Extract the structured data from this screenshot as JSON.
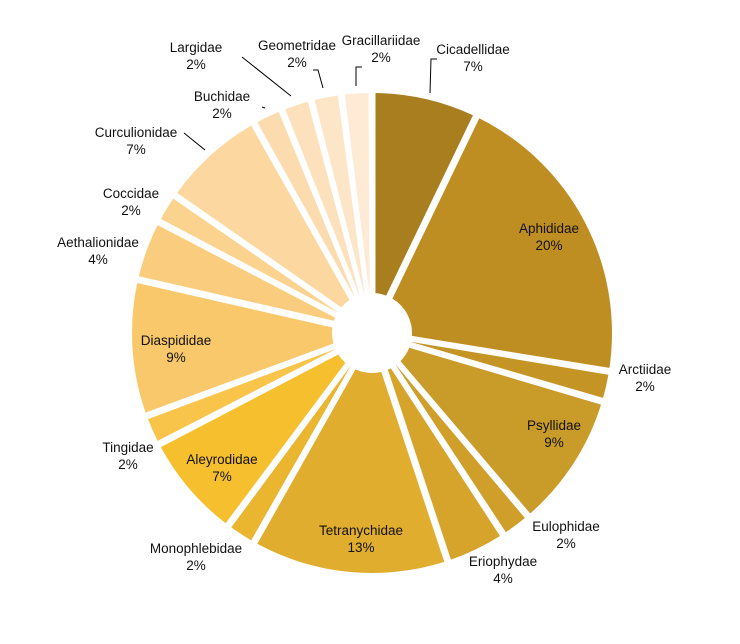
{
  "chart_data": {
    "type": "pie",
    "title": "",
    "exploded": true,
    "legend": "none",
    "slices": [
      {
        "label": "Cicadellidae",
        "pct_label": "7%",
        "value": 7,
        "color": "#a87e1e",
        "label_pos": "outside"
      },
      {
        "label": "Aphididae",
        "pct_label": "20%",
        "value": 20,
        "color": "#bf8e22",
        "label_pos": "inside"
      },
      {
        "label": "Arctiidae",
        "pct_label": "2%",
        "value": 2,
        "color": "#c49524",
        "label_pos": "outside"
      },
      {
        "label": "Psyllidae",
        "pct_label": "9%",
        "value": 9,
        "color": "#c99b28",
        "label_pos": "inside"
      },
      {
        "label": "Eulophidae",
        "pct_label": "2%",
        "value": 2,
        "color": "#cf9f2a",
        "label_pos": "outside"
      },
      {
        "label": "Eriophydae",
        "pct_label": "4%",
        "value": 4,
        "color": "#d6a42b",
        "label_pos": "outside"
      },
      {
        "label": "Tetranychidae",
        "pct_label": "13%",
        "value": 13,
        "color": "#e1ad2e",
        "label_pos": "inside"
      },
      {
        "label": "Monophlebidae",
        "pct_label": "2%",
        "value": 2,
        "color": "#eab52f",
        "label_pos": "outside"
      },
      {
        "label": "Aleyrodidae",
        "pct_label": "7%",
        "value": 7,
        "color": "#f6bf2e",
        "label_pos": "inside"
      },
      {
        "label": "Tingidae",
        "pct_label": "2%",
        "value": 2,
        "color": "#f8c44a",
        "label_pos": "outside"
      },
      {
        "label": "Diaspididae",
        "pct_label": "9%",
        "value": 9,
        "color": "#f9c86a",
        "label_pos": "inside"
      },
      {
        "label": "Aethalionidae",
        "pct_label": "4%",
        "value": 4,
        "color": "#facd7e",
        "label_pos": "outside"
      },
      {
        "label": "Coccidae",
        "pct_label": "2%",
        "value": 2,
        "color": "#fbd28e",
        "label_pos": "outside"
      },
      {
        "label": "Curculionidae",
        "pct_label": "7%",
        "value": 7,
        "color": "#fcd7a0",
        "label_pos": "outside"
      },
      {
        "label": "Buchidae",
        "pct_label": "2%",
        "value": 2,
        "color": "#fcdcaf",
        "label_pos": "outside"
      },
      {
        "label": "Largidae",
        "pct_label": "2%",
        "value": 2,
        "color": "#fde1bc",
        "label_pos": "outside"
      },
      {
        "label": "Geometridae",
        "pct_label": "2%",
        "value": 2,
        "color": "#fde5c7",
        "label_pos": "outside"
      },
      {
        "label": "Gracillariidae",
        "pct_label": "2%",
        "value": 2,
        "color": "#feead5",
        "label_pos": "outside"
      }
    ]
  }
}
